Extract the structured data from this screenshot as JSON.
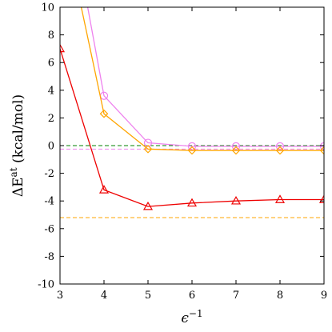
{
  "chart_data": {
    "type": "line",
    "xlabel": "ϵ",
    "xlabel_sup": "−1",
    "ylabel": "ΔE",
    "ylabel_sup": "at",
    "ylabel_unit": "(kcal/mol)",
    "xlim": [
      3,
      9
    ],
    "ylim": [
      -10,
      10
    ],
    "x_ticks": [
      3,
      4,
      5,
      6,
      7,
      8,
      9
    ],
    "y_ticks": [
      -10,
      -8,
      -6,
      -4,
      -2,
      0,
      2,
      4,
      6,
      8,
      10
    ],
    "grid": false,
    "legend": "none",
    "series": [
      {
        "color": "#ee82ee",
        "marker": "circle",
        "x": [
          3.6,
          4,
          5,
          6,
          7,
          8,
          9
        ],
        "y": [
          10.5,
          3.6,
          0.2,
          -0.05,
          -0.05,
          -0.05,
          -0.05
        ]
      },
      {
        "color": "#ffa500",
        "marker": "diamond",
        "x": [
          3.45,
          4,
          5,
          6,
          7,
          8,
          9
        ],
        "y": [
          10.5,
          2.3,
          -0.25,
          -0.35,
          -0.35,
          -0.35,
          -0.35
        ]
      },
      {
        "color": "#ee0000",
        "marker": "triangle",
        "x": [
          3,
          4,
          5,
          6,
          7,
          8,
          9
        ],
        "y": [
          7.0,
          -3.2,
          -4.4,
          -4.15,
          -4.0,
          -3.9,
          -3.9
        ]
      }
    ],
    "reference_lines": [
      {
        "y": 0.0,
        "color": "#008000"
      },
      {
        "y": -0.25,
        "color": "#ee82ee"
      },
      {
        "y": -5.2,
        "color": "#ffa500"
      }
    ]
  }
}
